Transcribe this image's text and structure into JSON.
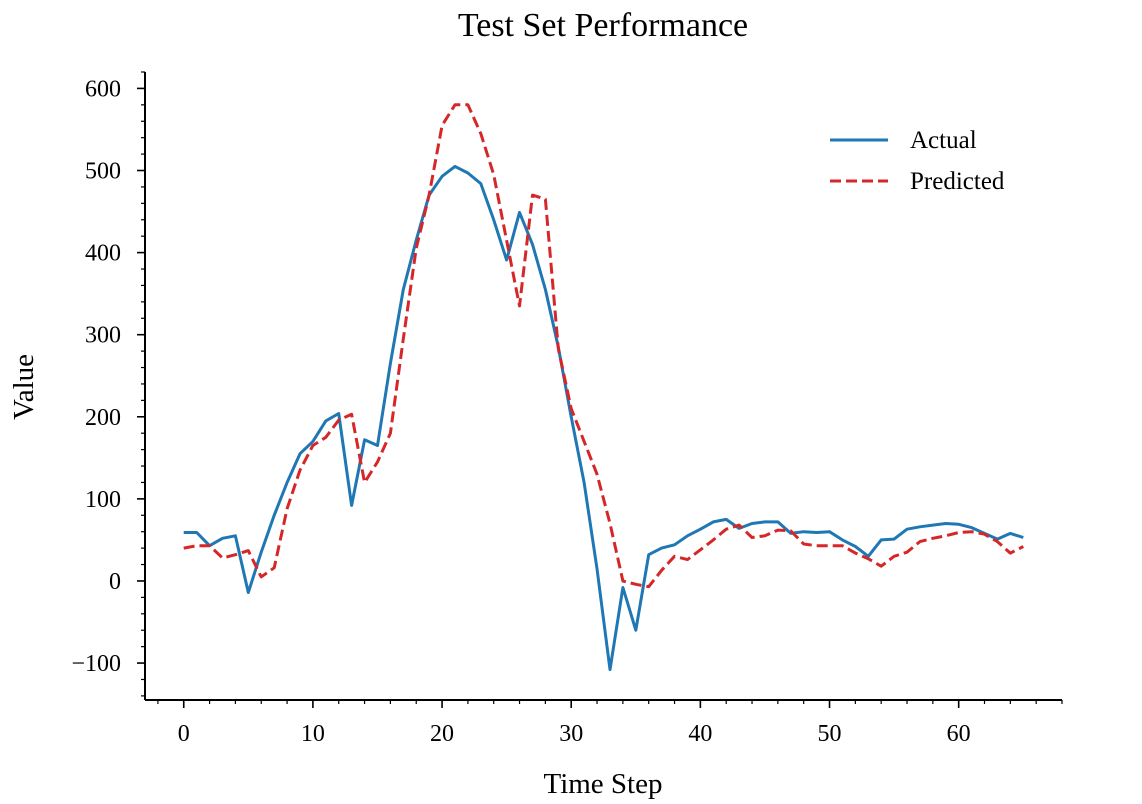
{
  "chart_data": {
    "type": "line",
    "title": "Test Set Performance",
    "xlabel": "Time Step",
    "ylabel": "Value",
    "xlim": [
      -3,
      68
    ],
    "ylim": [
      -145,
      620
    ],
    "xticks": [
      0,
      10,
      20,
      30,
      40,
      50,
      60
    ],
    "yticks": [
      -100,
      0,
      100,
      200,
      300,
      400,
      500,
      600
    ],
    "xtick_labels": [
      "0",
      "10",
      "20",
      "30",
      "40",
      "50",
      "60"
    ],
    "ytick_labels": [
      "−100",
      "0",
      "100",
      "200",
      "300",
      "400",
      "500",
      "600"
    ],
    "grid": false,
    "legend_position": "top-right",
    "x": [
      0,
      1,
      2,
      3,
      4,
      5,
      6,
      7,
      8,
      9,
      10,
      11,
      12,
      13,
      14,
      15,
      16,
      17,
      18,
      19,
      20,
      21,
      22,
      23,
      24,
      25,
      26,
      27,
      28,
      29,
      30,
      31,
      32,
      33,
      34,
      35,
      36,
      37,
      38,
      39,
      40,
      41,
      42,
      43,
      44,
      45,
      46,
      47,
      48,
      49,
      50,
      51,
      52,
      53,
      54,
      55,
      56,
      57,
      58,
      59,
      60,
      61,
      62,
      63,
      64,
      65
    ],
    "series": [
      {
        "name": "Actual",
        "color": "#1f77b4",
        "style": "solid",
        "values": [
          59,
          59,
          43,
          52,
          55,
          -14,
          35,
          80,
          120,
          155,
          170,
          195,
          204,
          92,
          172,
          165,
          265,
          355,
          415,
          470,
          493,
          505,
          497,
          484,
          440,
          391,
          449,
          410,
          355,
          285,
          200,
          120,
          15,
          -108,
          -8,
          -60,
          32,
          40,
          44,
          55,
          63,
          72,
          75,
          64,
          70,
          72,
          72,
          58,
          60,
          59,
          60,
          50,
          42,
          30,
          50,
          51,
          63,
          66,
          68,
          70,
          69,
          65,
          58,
          51,
          58,
          53
        ]
      },
      {
        "name": "Predicted",
        "color": "#d62728",
        "style": "dashed",
        "values": [
          40,
          43,
          43,
          28,
          32,
          37,
          5,
          16,
          88,
          135,
          165,
          175,
          196,
          203,
          120,
          145,
          180,
          295,
          405,
          470,
          555,
          580,
          580,
          545,
          495,
          415,
          335,
          470,
          465,
          283,
          210,
          170,
          130,
          70,
          0,
          -4,
          -7,
          13,
          30,
          26,
          38,
          50,
          63,
          68,
          53,
          55,
          62,
          61,
          45,
          43,
          43,
          43,
          34,
          27,
          18,
          30,
          35,
          48,
          52,
          55,
          59,
          60,
          57,
          48,
          34,
          42
        ]
      }
    ]
  }
}
